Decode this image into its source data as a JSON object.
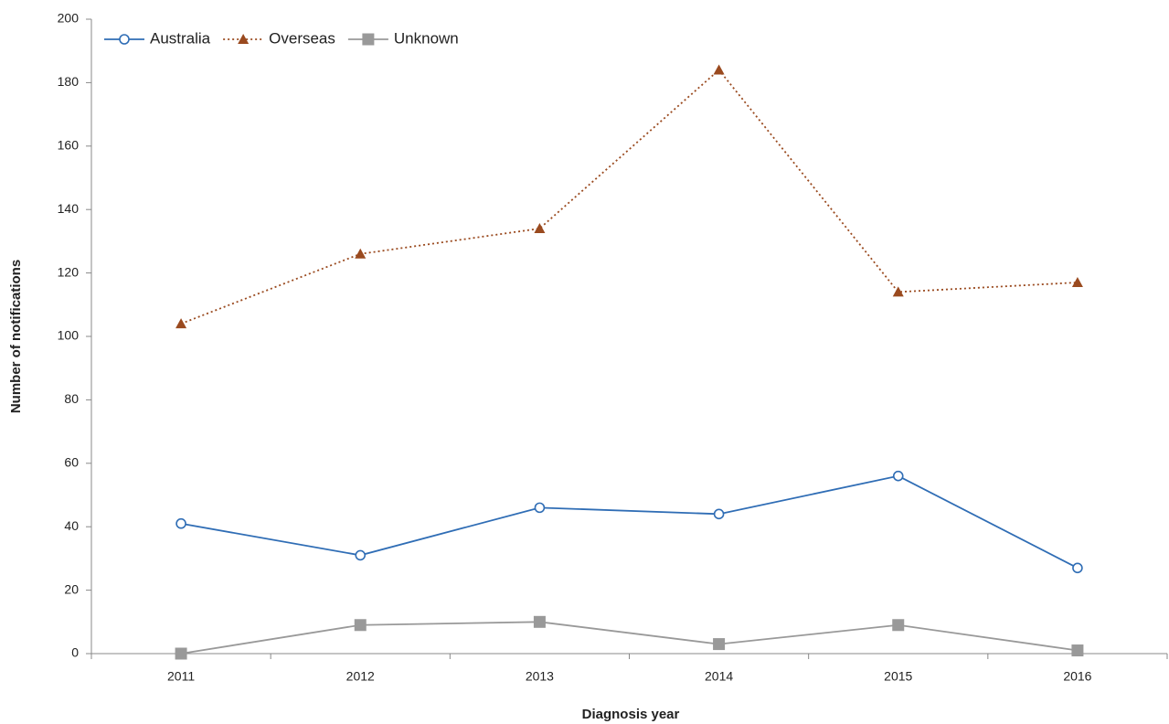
{
  "chart_data": {
    "type": "line",
    "x_label": "Diagnosis year",
    "y_label": "Number of notifications",
    "categories": [
      "2011",
      "2012",
      "2013",
      "2014",
      "2015",
      "2016"
    ],
    "series": [
      {
        "name": "Australia",
        "color": "#2f6db5",
        "marker": "circle",
        "line_style": "solid",
        "values": [
          41,
          31,
          46,
          44,
          56,
          27
        ]
      },
      {
        "name": "Overseas",
        "color": "#9a4a1f",
        "marker": "triangle",
        "line_style": "dotted",
        "values": [
          104,
          126,
          134,
          184,
          114,
          117
        ]
      },
      {
        "name": "Unknown",
        "color": "#999999",
        "marker": "square",
        "line_style": "solid",
        "values": [
          0,
          9,
          10,
          3,
          9,
          1
        ]
      }
    ],
    "ylim": [
      0,
      200
    ],
    "yticks": [
      0,
      20,
      40,
      60,
      80,
      100,
      120,
      140,
      160,
      180,
      200
    ],
    "grid": false,
    "legend_position": "upper left"
  }
}
